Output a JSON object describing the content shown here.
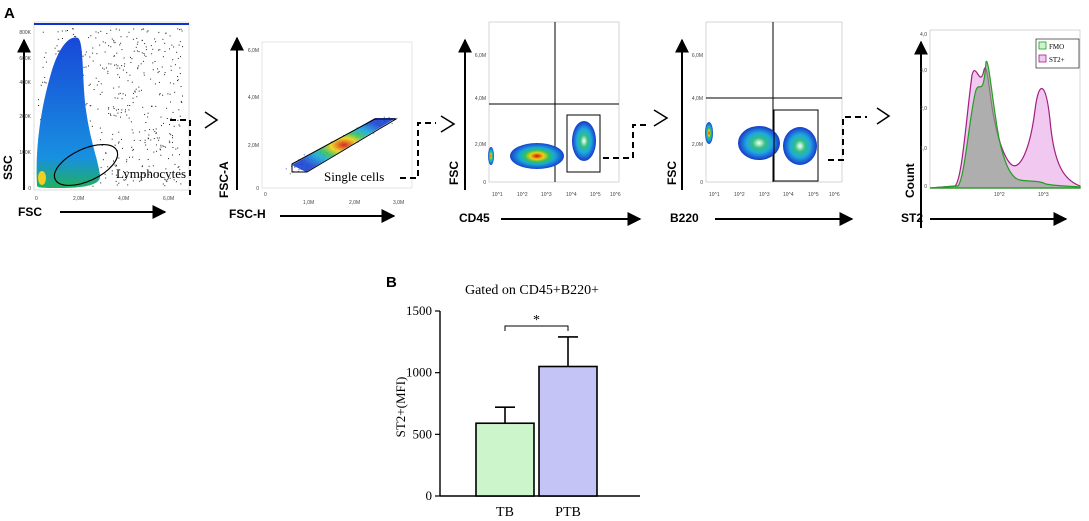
{
  "panel_a": {
    "label": "A",
    "plots": [
      {
        "xlabel": "FSC",
        "ylabel": "SSC",
        "gate": "Lymphocytes",
        "xticks": [
          "0",
          "2,0M",
          "4,0M",
          "6,0M"
        ],
        "yticks": [
          "0",
          "100K",
          "200K",
          "400K",
          "600K",
          "800K"
        ]
      },
      {
        "xlabel": "FSC-H",
        "ylabel": "FSC-A",
        "gate": "Single cells",
        "xticks": [
          "0",
          "1,0M",
          "2,0M",
          "3,0M"
        ],
        "yticks": [
          "0",
          "2,0M",
          "4,0M",
          "6,0M"
        ]
      },
      {
        "xlabel": "CD45",
        "ylabel": "FSC",
        "xticks": [
          "10^1",
          "10^2",
          "10^3",
          "10^4",
          "10^5",
          "10^6"
        ],
        "yticks": [
          "0",
          "2,0M",
          "4,0M",
          "6,0M"
        ]
      },
      {
        "xlabel": "B220",
        "ylabel": "FSC",
        "xticks": [
          "10^1",
          "10^2",
          "10^3",
          "10^4",
          "10^5",
          "10^6"
        ],
        "yticks": [
          "0",
          "2,0M",
          "4,0M",
          "6,0M"
        ]
      },
      {
        "xlabel": "ST2",
        "ylabel": "Count",
        "yticks": [
          "0",
          "1,0",
          "2,0",
          "3,0",
          "4,0"
        ],
        "xticks": [
          "10^2",
          "10^3"
        ],
        "legend": [
          "FMO",
          "ST2+"
        ]
      }
    ]
  },
  "chart_data": {
    "type": "bar",
    "panel_label": "B",
    "title": "Gated on CD45+B220+",
    "ylabel": "ST2+(MFI)",
    "xlabel": "",
    "categories": [
      "TB",
      "PTB"
    ],
    "values": [
      590,
      1050
    ],
    "errors": [
      130,
      240
    ],
    "colors": [
      "#ccf5cc",
      "#c4c4f7"
    ],
    "ylim": [
      0,
      1500
    ],
    "yticks": [
      0,
      500,
      1000,
      1500
    ],
    "significance": "*"
  }
}
